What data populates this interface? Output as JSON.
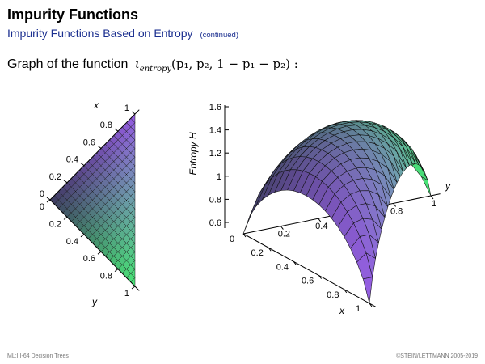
{
  "header": {
    "title": "Impurity Functions",
    "subtitle": "Impurity Functions Based on",
    "subtitle_link": "Entropy",
    "subtitle_note": "(continued)"
  },
  "body": {
    "lead": "Graph of the function",
    "func_symbol": "ι",
    "func_sub": "entropy",
    "func_args": "(p₁, p₂, 1 − p₁ − p₂) :"
  },
  "left_plot": {
    "x_label": "x",
    "y_label": "y",
    "x_ticks": [
      "0",
      "0.2",
      "0.4",
      "0.6",
      "0.8",
      "1"
    ],
    "y_ticks": [
      "0",
      "0.2",
      "0.4",
      "0.6",
      "0.8",
      "1"
    ]
  },
  "right_plot": {
    "z_label": "Entropy H",
    "x_label": "x",
    "y_label": "y",
    "z_ticks": [
      "0.6",
      "0.8",
      "1",
      "1.2",
      "1.4",
      "1.6"
    ],
    "x_ticks": [
      "0",
      "0.2",
      "0.4",
      "0.6",
      "0.8",
      "1"
    ],
    "y_ticks": [
      "0.2",
      "0.4",
      "0.8",
      "1"
    ]
  },
  "footer": {
    "left": "ML:III-64    Decision Trees",
    "right": "©STEIN/LETTMANN 2005-2019"
  },
  "colors": {
    "subtitle": "#1a2e8f",
    "surface_low": "#48e070",
    "surface_mid": "#6a6ae0",
    "surface_high": "#e04a7a"
  }
}
